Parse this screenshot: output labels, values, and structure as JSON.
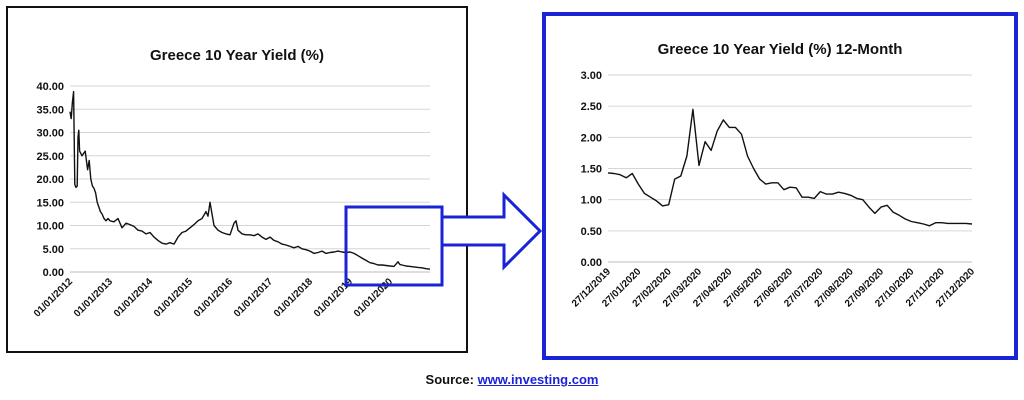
{
  "chart_data": [
    {
      "type": "line",
      "title": "Greece 10 Year Yield (%)",
      "xlabel": "",
      "ylabel": "",
      "ylim": [
        0,
        40
      ],
      "yticks": [
        "0.00",
        "5.00",
        "10.00",
        "15.00",
        "20.00",
        "25.00",
        "30.00",
        "35.00",
        "40.00"
      ],
      "xticks": [
        "01/01/2012",
        "01/01/2013",
        "01/01/2014",
        "01/01/2015",
        "01/01/2016",
        "01/01/2017",
        "01/01/2018",
        "01/01/2019",
        "01/01/2020"
      ],
      "xlim": [
        2012.0,
        2021.0
      ],
      "grid": true,
      "line_color": "#111111",
      "x": [
        2012.0,
        2012.03,
        2012.06,
        2012.09,
        2012.12,
        2012.15,
        2012.18,
        2012.2,
        2012.22,
        2012.24,
        2012.3,
        2012.38,
        2012.44,
        2012.48,
        2012.52,
        2012.56,
        2012.6,
        2012.64,
        2012.68,
        2012.72,
        2012.76,
        2012.8,
        2012.85,
        2012.9,
        2012.95,
        2013.0,
        2013.1,
        2013.2,
        2013.3,
        2013.4,
        2013.5,
        2013.6,
        2013.7,
        2013.8,
        2013.9,
        2014.0,
        2014.1,
        2014.2,
        2014.3,
        2014.4,
        2014.5,
        2014.6,
        2014.7,
        2014.8,
        2014.9,
        2015.0,
        2015.1,
        2015.2,
        2015.3,
        2015.4,
        2015.45,
        2015.5,
        2015.55,
        2015.6,
        2015.7,
        2015.8,
        2015.9,
        2016.0,
        2016.1,
        2016.15,
        2016.2,
        2016.3,
        2016.4,
        2016.5,
        2016.6,
        2016.7,
        2016.8,
        2016.9,
        2017.0,
        2017.1,
        2017.2,
        2017.3,
        2017.4,
        2017.5,
        2017.6,
        2017.7,
        2017.8,
        2017.9,
        2018.0,
        2018.1,
        2018.2,
        2018.3,
        2018.4,
        2018.5,
        2018.6,
        2018.7,
        2018.8,
        2018.9,
        2019.0,
        2019.1,
        2019.2,
        2019.3,
        2019.4,
        2019.5,
        2019.6,
        2019.7,
        2019.8,
        2019.9,
        2020.0,
        2020.1,
        2020.2,
        2020.25,
        2020.3,
        2020.4,
        2020.5,
        2020.6,
        2020.7,
        2020.8,
        2020.9,
        2021.0
      ],
      "values": [
        34.5,
        33.0,
        36.5,
        38.8,
        18.8,
        18.2,
        18.5,
        29.0,
        30.5,
        26.0,
        25.0,
        26.0,
        22.0,
        24.0,
        20.0,
        18.5,
        18.0,
        17.0,
        15.0,
        14.0,
        13.0,
        12.5,
        11.5,
        11.0,
        11.5,
        11.0,
        10.8,
        11.5,
        9.5,
        10.5,
        10.2,
        9.8,
        9.0,
        8.8,
        8.2,
        8.5,
        7.5,
        6.8,
        6.2,
        6.0,
        6.3,
        6.0,
        7.5,
        8.5,
        8.8,
        9.5,
        10.2,
        11.0,
        11.5,
        13.0,
        12.0,
        15.0,
        12.5,
        10.0,
        9.0,
        8.5,
        8.2,
        8.0,
        10.5,
        11.0,
        9.0,
        8.2,
        8.0,
        8.0,
        7.8,
        8.2,
        7.5,
        7.0,
        7.5,
        6.8,
        6.5,
        6.0,
        5.8,
        5.5,
        5.2,
        5.5,
        5.0,
        4.8,
        4.5,
        4.0,
        4.2,
        4.5,
        4.0,
        4.2,
        4.3,
        4.5,
        4.3,
        4.2,
        4.3,
        4.0,
        3.5,
        3.0,
        2.5,
        2.0,
        1.8,
        1.5,
        1.5,
        1.4,
        1.3,
        1.2,
        2.2,
        1.6,
        1.5,
        1.3,
        1.2,
        1.1,
        1.0,
        0.9,
        0.7,
        0.6
      ]
    },
    {
      "type": "line",
      "title": "Greece 10 Year Yield (%) 12-Month",
      "xlabel": "",
      "ylabel": "",
      "ylim": [
        0,
        3
      ],
      "yticks": [
        "0.00",
        "0.50",
        "1.00",
        "1.50",
        "2.00",
        "2.50",
        "3.00"
      ],
      "xticks": [
        "27/12/2019",
        "27/01/2020",
        "27/02/2020",
        "27/03/2020",
        "27/04/2020",
        "27/05/2020",
        "27/06/2020",
        "27/07/2020",
        "27/08/2020",
        "27/09/2020",
        "27/10/2020",
        "27/11/2020",
        "27/12/2020"
      ],
      "grid": true,
      "line_color": "#111111",
      "x": [
        0,
        0.2,
        0.4,
        0.6,
        0.8,
        1.0,
        1.2,
        1.4,
        1.6,
        1.8,
        2.0,
        2.2,
        2.4,
        2.6,
        2.8,
        3.0,
        3.2,
        3.4,
        3.6,
        3.8,
        4.0,
        4.2,
        4.4,
        4.6,
        4.8,
        5.0,
        5.2,
        5.4,
        5.6,
        5.8,
        6.0,
        6.2,
        6.4,
        6.6,
        6.8,
        7.0,
        7.2,
        7.4,
        7.6,
        7.8,
        8.0,
        8.2,
        8.4,
        8.6,
        8.8,
        9.0,
        9.2,
        9.4,
        9.6,
        9.8,
        10.0,
        10.2,
        10.4,
        10.6,
        10.8,
        11.0,
        11.2,
        11.4,
        11.6,
        11.8,
        12.0
      ],
      "values": [
        1.43,
        1.42,
        1.4,
        1.35,
        1.42,
        1.25,
        1.1,
        1.04,
        0.98,
        0.9,
        0.92,
        1.33,
        1.38,
        1.7,
        2.45,
        1.55,
        1.93,
        1.79,
        2.1,
        2.28,
        2.16,
        2.16,
        2.05,
        1.7,
        1.5,
        1.33,
        1.25,
        1.27,
        1.27,
        1.16,
        1.2,
        1.19,
        1.04,
        1.04,
        1.02,
        1.13,
        1.09,
        1.09,
        1.12,
        1.1,
        1.07,
        1.02,
        1.0,
        0.88,
        0.78,
        0.88,
        0.91,
        0.8,
        0.75,
        0.69,
        0.65,
        0.63,
        0.61,
        0.58,
        0.63,
        0.63,
        0.62,
        0.62,
        0.62,
        0.62,
        0.61
      ]
    }
  ],
  "source": {
    "label": "Source:",
    "link_text": "www.investing.com"
  },
  "colors": {
    "highlight_box": "#1a24d6",
    "arrow": "#1a24d6",
    "grid": "#d6d6d6"
  }
}
